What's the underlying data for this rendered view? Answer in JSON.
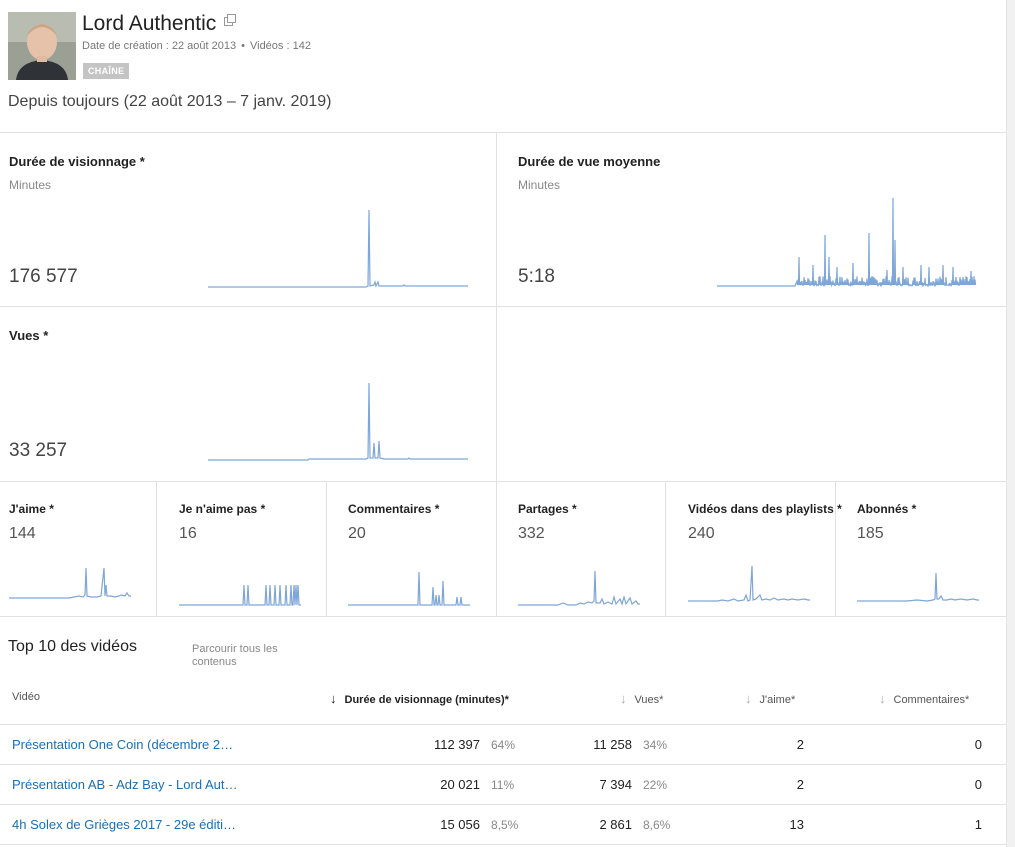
{
  "channel": {
    "name": "Lord Authentic",
    "created_label": "Date de création : 22 août 2013",
    "videos_label": "Vidéos : 142",
    "badge": "CHAÎNE",
    "avatar_icon": "avatar-photo",
    "external_icon": "external-link-icon"
  },
  "period": "Depuis toujours (22 août 2013 – 7 janv. 2019)",
  "main_metrics": [
    {
      "title": "Durée de visionnage *",
      "subtitle": "Minutes",
      "value": "176 577"
    },
    {
      "title": "Durée de vue moyenne",
      "subtitle": "Minutes",
      "value": "5:18"
    },
    {
      "title": "Vues *",
      "subtitle": "",
      "value": "33 257"
    }
  ],
  "small_metrics": [
    {
      "title": "J'aime *",
      "value": "144"
    },
    {
      "title": "Je n'aime pas *",
      "value": "16"
    },
    {
      "title": "Commentaires *",
      "value": "20"
    },
    {
      "title": "Partages *",
      "value": "332"
    },
    {
      "title": "Vidéos dans des playlists *",
      "value": "240"
    },
    {
      "title": "Abonnés *",
      "value": "185"
    }
  ],
  "top_videos": {
    "title": "Top 10 des vidéos",
    "browse_link": "Parcourir tous les contenus",
    "columns": {
      "video": "Vidéo",
      "watch_time": "Durée de visionnage (minutes)*",
      "views": "Vues*",
      "likes": "J'aime*",
      "comments": "Commentaires*"
    },
    "rows": [
      {
        "title": "Présentation One Coin (décembre 2…",
        "watch_time": "112 397",
        "watch_pct": "64%",
        "views": "11 258",
        "views_pct": "34%",
        "likes": "2",
        "comments": "0"
      },
      {
        "title": "Présentation AB - Adz Bay - Lord Aut…",
        "watch_time": "20 021",
        "watch_pct": "11%",
        "views": "7 394",
        "views_pct": "22%",
        "likes": "2",
        "comments": "0"
      },
      {
        "title": "4h Solex de Grièges 2017 - 29e éditi…",
        "watch_time": "15 056",
        "watch_pct": "8,5%",
        "views": "2 861",
        "views_pct": "8,6%",
        "likes": "13",
        "comments": "1"
      }
    ]
  },
  "colors": {
    "spark": "#7ea6d8",
    "link": "#1a6fb3"
  }
}
